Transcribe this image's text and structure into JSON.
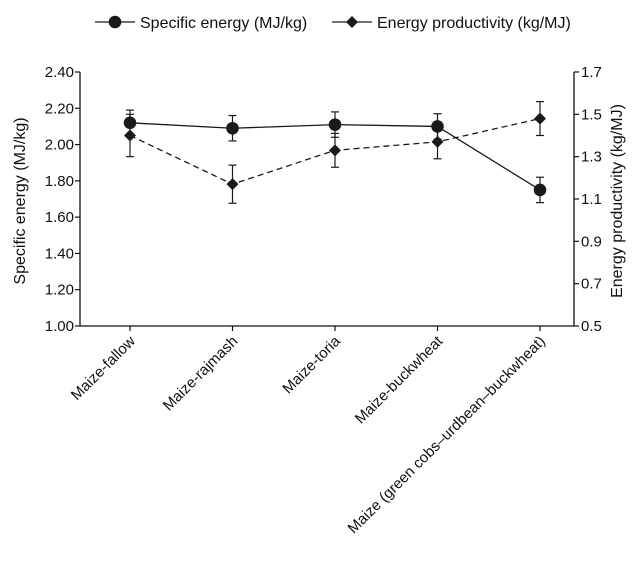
{
  "chart_data": {
    "type": "line",
    "categories": [
      "Maize-fallow",
      "Maize-rajmash",
      "Maize-toria",
      "Maize-buckwheat",
      "Maize (green cobs–urdbean–buckwheat)"
    ],
    "series": [
      {
        "name": "Specific energy (MJ/kg)",
        "axis": "left",
        "marker": "circle",
        "line_style": "solid",
        "values": [
          2.12,
          2.09,
          2.11,
          2.1,
          1.75
        ],
        "error": [
          0.07,
          0.07,
          0.07,
          0.07,
          0.07
        ]
      },
      {
        "name": "Energy productivity (kg/MJ)",
        "axis": "right",
        "marker": "diamond",
        "line_style": "dashed",
        "values": [
          1.4,
          1.17,
          1.33,
          1.37,
          1.48
        ],
        "error": [
          0.1,
          0.09,
          0.08,
          0.08,
          0.08
        ]
      }
    ],
    "y_left": {
      "label": "Specific energy (MJ/kg)",
      "lim": [
        1.0,
        2.4
      ],
      "ticks": [
        "1.00",
        "1.20",
        "1.40",
        "1.60",
        "1.80",
        "2.00",
        "2.20",
        "2.40"
      ]
    },
    "y_right": {
      "label": "Energy productivity (kg/MJ)",
      "lim": [
        0.5,
        1.7
      ],
      "ticks": [
        "0.5",
        "0.7",
        "0.9",
        "1.1",
        "1.3",
        "1.5",
        "1.7"
      ]
    },
    "legend_position": "top",
    "grid": false,
    "colors": {
      "line": "#1a1a1a",
      "marker": "#1a1a1a"
    }
  }
}
